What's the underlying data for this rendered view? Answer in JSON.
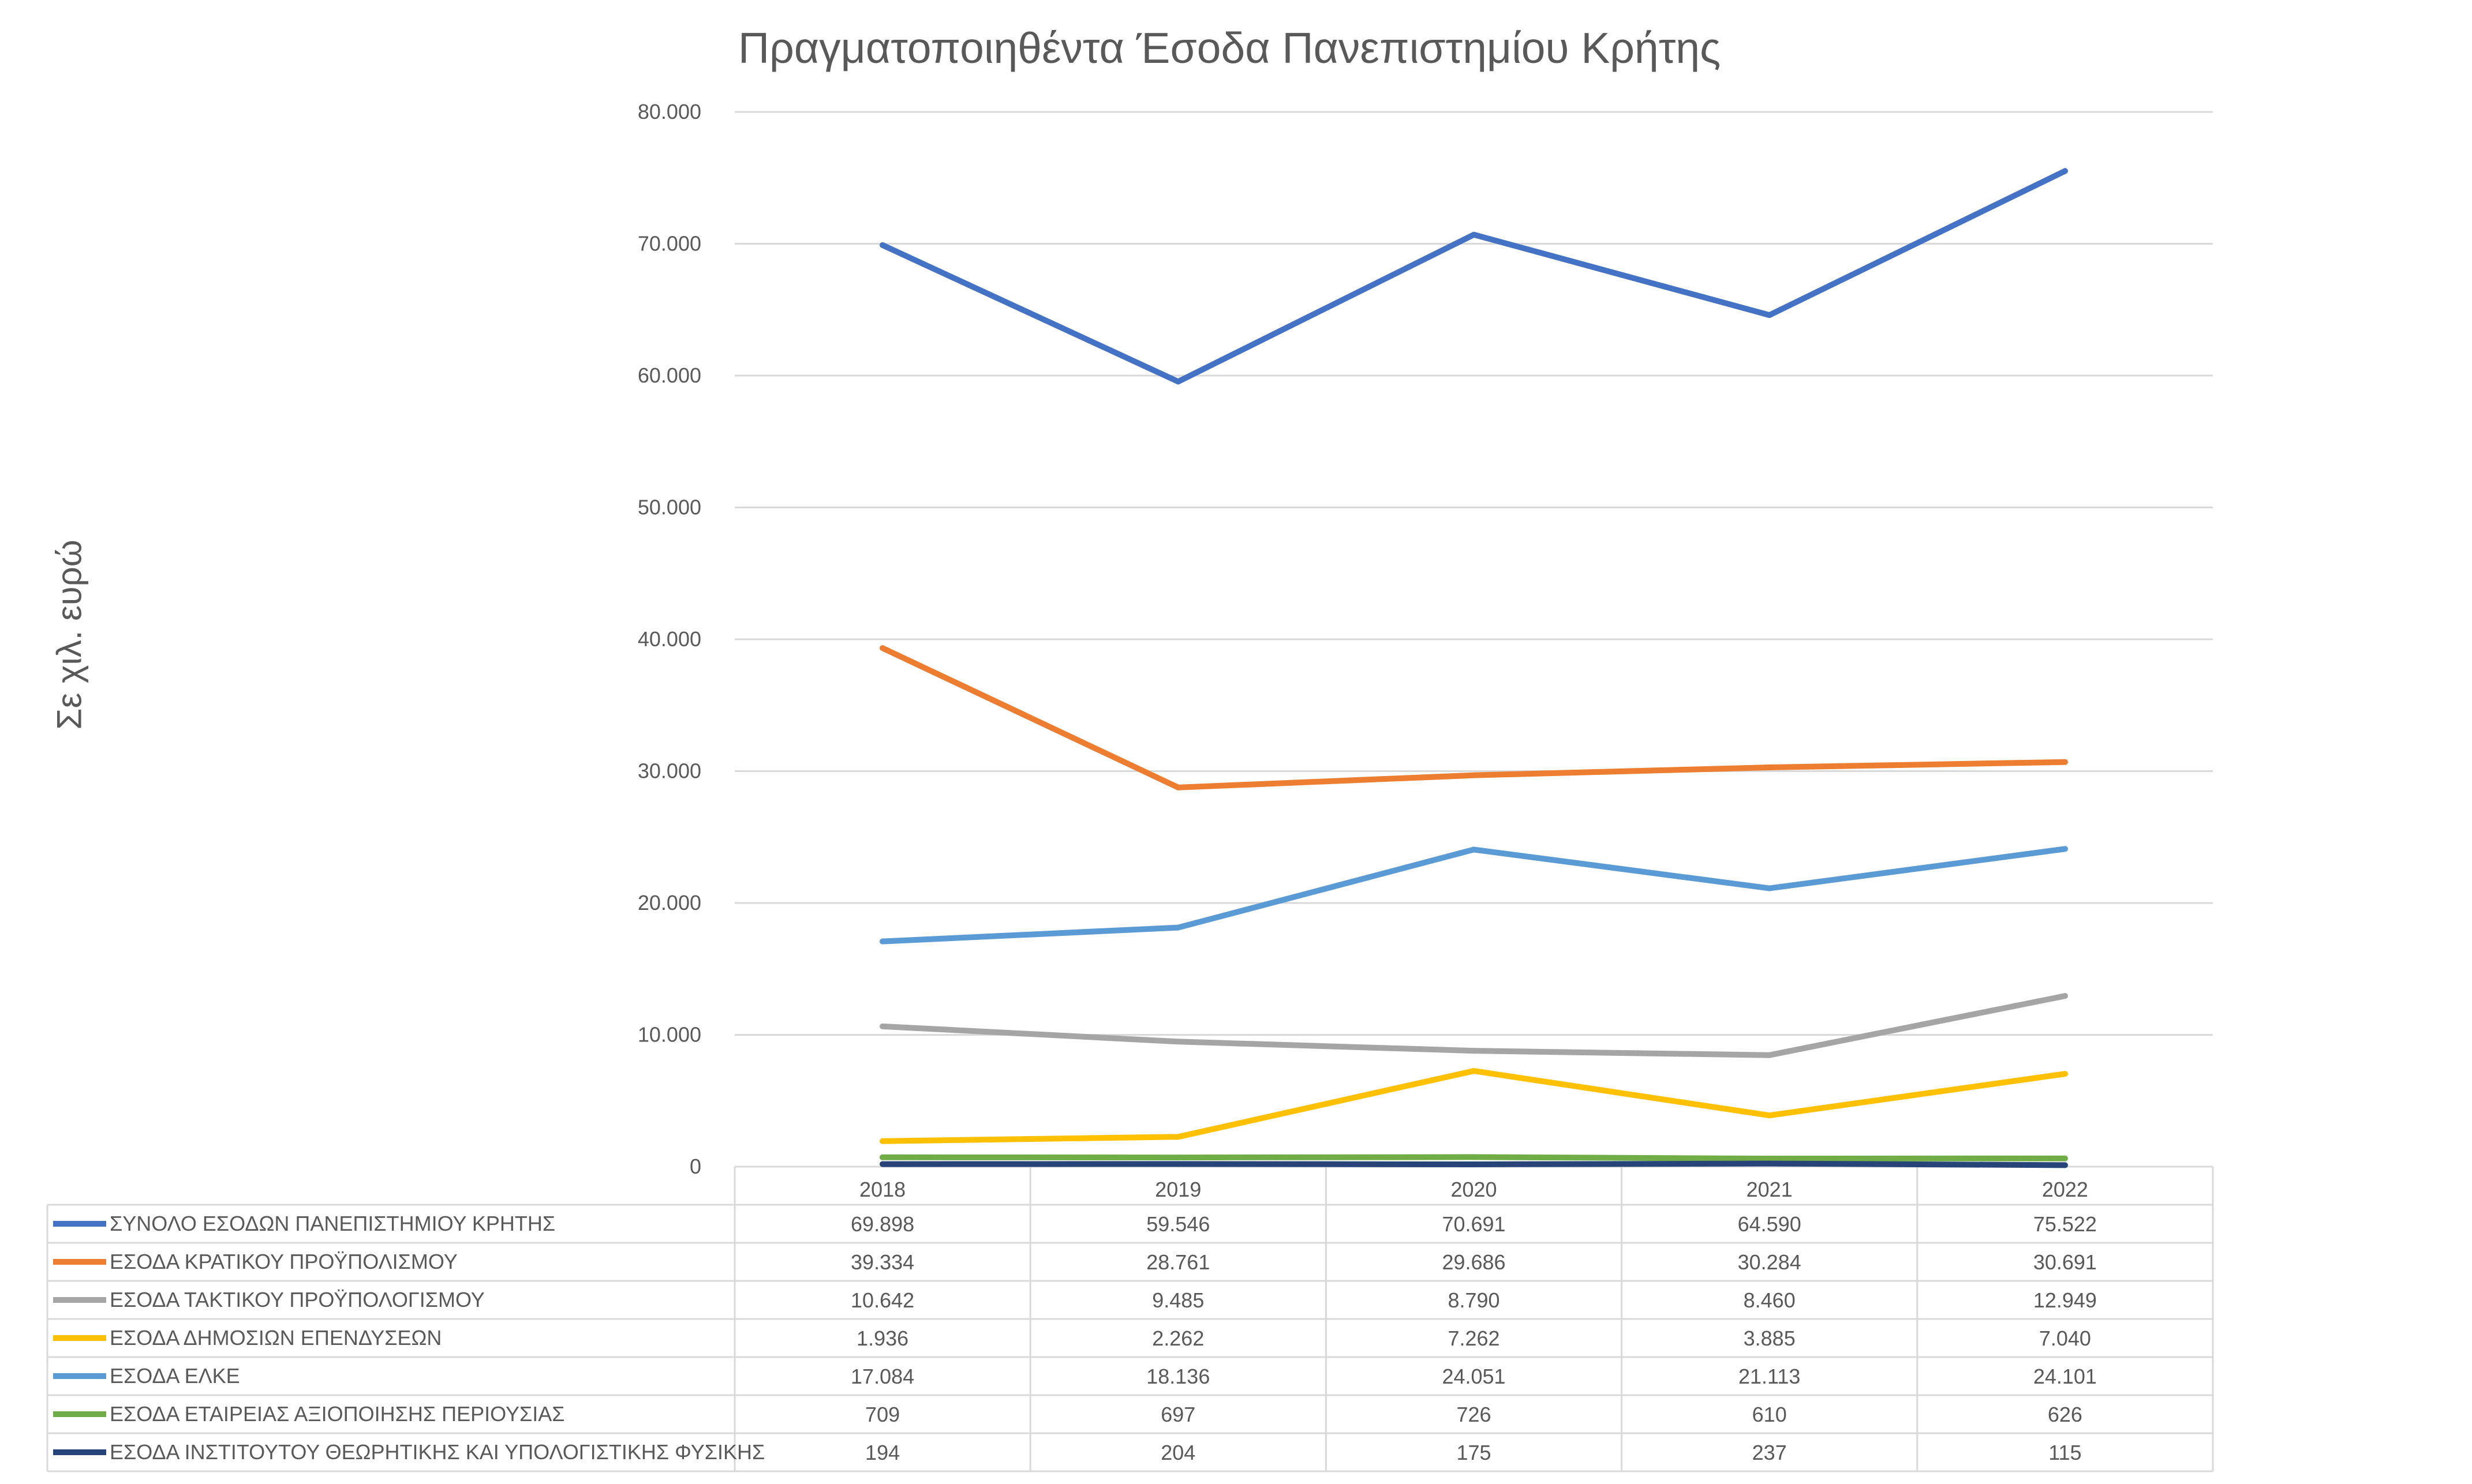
{
  "chart_data": {
    "type": "line",
    "title": "Πραγματοποιηθέντα Έσοδα Πανεπιστημίου Κρήτης",
    "ylabel": "Σε χιλ. ευρώ",
    "xlabel": "",
    "ylim": [
      0,
      80000
    ],
    "yticks": [
      0,
      10000,
      20000,
      30000,
      40000,
      50000,
      60000,
      70000,
      80000
    ],
    "ytick_labels": [
      "0",
      "10.000",
      "20.000",
      "30.000",
      "40.000",
      "50.000",
      "60.000",
      "70.000",
      "80.000"
    ],
    "grid": true,
    "legend": "data-table-below",
    "categories": [
      "2018",
      "2019",
      "2020",
      "2021",
      "2022"
    ],
    "series": [
      {
        "name": "ΣΥΝΟΛΟ ΕΣΟΔΩΝ ΠΑΝΕΠΙΣΤΗΜΙΟΥ ΚΡΗΤΗΣ",
        "color": "#4472C4",
        "values": [
          69898,
          59546,
          70691,
          64590,
          75522
        ],
        "labels": [
          "69.898",
          "59.546",
          "70.691",
          "64.590",
          "75.522"
        ]
      },
      {
        "name": "ΕΣΟΔΑ ΚΡΑΤΙΚΟΥ ΠΡΟΫΠΟΛΙΣΜΟΥ",
        "color": "#ED7D31",
        "values": [
          39334,
          28761,
          29686,
          30284,
          30691
        ],
        "labels": [
          "39.334",
          "28.761",
          "29.686",
          "30.284",
          "30.691"
        ]
      },
      {
        "name": "ΕΣΟΔΑ ΤΑΚΤΙΚΟΥ ΠΡΟΫΠΟΛΟΓΙΣΜΟΥ",
        "color": "#A5A5A5",
        "values": [
          10642,
          9485,
          8790,
          8460,
          12949
        ],
        "labels": [
          "10.642",
          "9.485",
          "8.790",
          "8.460",
          "12.949"
        ]
      },
      {
        "name": "ΕΣΟΔΑ ΔΗΜΟΣΙΩΝ ΕΠΕΝΔΥΣΕΩΝ",
        "color": "#FFC000",
        "values": [
          1936,
          2262,
          7262,
          3885,
          7040
        ],
        "labels": [
          "1.936",
          "2.262",
          "7.262",
          "3.885",
          "7.040"
        ]
      },
      {
        "name": "ΕΣΟΔΑ ΕΛΚΕ",
        "color": "#5B9BD5",
        "values": [
          17084,
          18136,
          24051,
          21113,
          24101
        ],
        "labels": [
          "17.084",
          "18.136",
          "24.051",
          "21.113",
          "24.101"
        ]
      },
      {
        "name": "ΕΣΟΔΑ ΕΤΑΙΡΕΙΑΣ ΑΞΙΟΠΟΙΗΣΗΣ ΠΕΡΙΟΥΣΙΑΣ",
        "color": "#70AD47",
        "values": [
          709,
          697,
          726,
          610,
          626
        ],
        "labels": [
          "709",
          "697",
          "726",
          "610",
          "626"
        ]
      },
      {
        "name": "ΕΣΟΔΑ ΙΝΣΤΙΤΟΥΤΟΥ ΘΕΩΡΗΤΙΚΗΣ ΚΑΙ ΥΠΟΛΟΓΙΣΤΙΚΗΣ ΦΥΣΙΚΗΣ",
        "color": "#264478",
        "values": [
          194,
          204,
          175,
          237,
          115
        ],
        "labels": [
          "194",
          "204",
          "175",
          "237",
          "115"
        ]
      }
    ]
  }
}
